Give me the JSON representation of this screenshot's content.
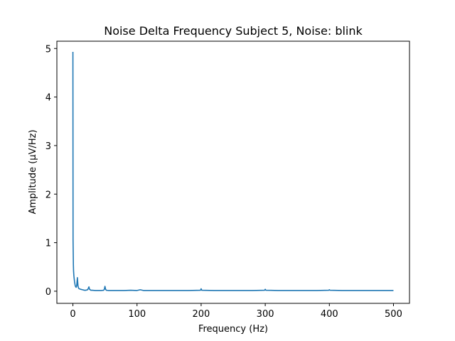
{
  "chart_data": {
    "type": "line",
    "title": "Noise Delta Frequency Subject 5, Noise: blink",
    "xlabel": "Frequency (Hz)",
    "ylabel": "Amplitude (μV/Hz)",
    "xlim": [
      -25,
      525
    ],
    "ylim": [
      -0.25,
      5.15
    ],
    "x_ticks": [
      0,
      100,
      200,
      300,
      400,
      500
    ],
    "y_ticks": [
      0,
      1,
      2,
      3,
      4,
      5
    ],
    "grid": false,
    "series": [
      {
        "color": "#1f77b4",
        "x": [
          0,
          0.25,
          0.5,
          0.75,
          1,
          1.5,
          2,
          2.5,
          3,
          3.5,
          4,
          5,
          6,
          7,
          8,
          9,
          10,
          12,
          15,
          18,
          20,
          23,
          24,
          25,
          26,
          28,
          30,
          35,
          40,
          45,
          48,
          49,
          50,
          51,
          52,
          55,
          60,
          70,
          80,
          90,
          100,
          105,
          110,
          120,
          150,
          180,
          199,
          200,
          201,
          220,
          250,
          280,
          299,
          300,
          301,
          320,
          350,
          380,
          399,
          400,
          401,
          420,
          450,
          480,
          500
        ],
        "y": [
          4.93,
          1.05,
          0.8,
          0.55,
          0.42,
          0.32,
          0.26,
          0.2,
          0.16,
          0.12,
          0.1,
          0.08,
          0.12,
          0.28,
          0.1,
          0.06,
          0.05,
          0.04,
          0.03,
          0.02,
          0.02,
          0.03,
          0.06,
          0.09,
          0.04,
          0.02,
          0.02,
          0.015,
          0.015,
          0.015,
          0.02,
          0.04,
          0.1,
          0.04,
          0.02,
          0.015,
          0.015,
          0.015,
          0.015,
          0.02,
          0.015,
          0.03,
          0.015,
          0.015,
          0.015,
          0.015,
          0.02,
          0.05,
          0.02,
          0.015,
          0.015,
          0.015,
          0.02,
          0.04,
          0.02,
          0.015,
          0.015,
          0.015,
          0.02,
          0.03,
          0.02,
          0.015,
          0.015,
          0.015,
          0.015
        ]
      }
    ]
  }
}
